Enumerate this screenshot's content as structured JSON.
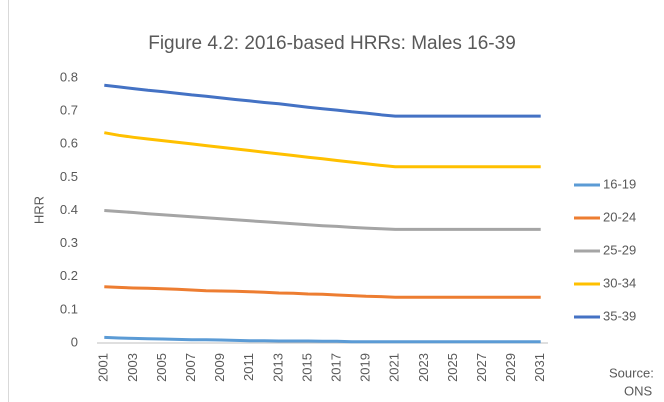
{
  "chart_data": {
    "type": "line",
    "title": "Figure 4.2: 2016-based HRRs: Males 16-39",
    "y_label": "HRR",
    "annotation": [
      "Source:",
      "ONS"
    ],
    "categories": [
      "2001",
      null,
      "2003",
      null,
      "2005",
      null,
      "2007",
      null,
      "2009",
      null,
      "2011",
      null,
      "2013",
      null,
      "2015",
      null,
      "2017",
      null,
      "2019",
      null,
      "2021",
      null,
      "2023",
      null,
      "2025",
      null,
      "2027",
      null,
      "2029",
      null,
      "2031"
    ],
    "series": [
      {
        "name": "16-19",
        "color": "#5b9bd5",
        "values": [
          0.017,
          0.015,
          0.014,
          0.013,
          0.012,
          0.011,
          0.01,
          0.01,
          0.009,
          0.008,
          0.007,
          0.007,
          0.006,
          0.006,
          0.006,
          0.005,
          0.005,
          0.004,
          0.004,
          0.004,
          0.004,
          0.004,
          0.004,
          0.004,
          0.004,
          0.004,
          0.004,
          0.004,
          0.004,
          0.004,
          0.004
        ]
      },
      {
        "name": "20-24",
        "color": "#ed7d31",
        "values": [
          0.17,
          0.168,
          0.166,
          0.165,
          0.164,
          0.162,
          0.16,
          0.158,
          0.157,
          0.156,
          0.155,
          0.153,
          0.151,
          0.15,
          0.148,
          0.147,
          0.145,
          0.143,
          0.141,
          0.14,
          0.138,
          0.138,
          0.138,
          0.138,
          0.138,
          0.138,
          0.138,
          0.138,
          0.138,
          0.138,
          0.138
        ]
      },
      {
        "name": "25-29",
        "color": "#a5a5a5",
        "values": [
          0.4,
          0.397,
          0.394,
          0.39,
          0.387,
          0.384,
          0.381,
          0.378,
          0.375,
          0.372,
          0.369,
          0.366,
          0.363,
          0.36,
          0.357,
          0.354,
          0.352,
          0.349,
          0.347,
          0.345,
          0.343,
          0.343,
          0.343,
          0.343,
          0.343,
          0.343,
          0.343,
          0.343,
          0.343,
          0.343,
          0.343
        ]
      },
      {
        "name": "30-34",
        "color": "#ffc000",
        "values": [
          0.635,
          0.627,
          0.621,
          0.616,
          0.611,
          0.606,
          0.601,
          0.596,
          0.591,
          0.586,
          0.581,
          0.576,
          0.571,
          0.566,
          0.561,
          0.556,
          0.551,
          0.546,
          0.541,
          0.536,
          0.532,
          0.532,
          0.532,
          0.532,
          0.532,
          0.532,
          0.532,
          0.532,
          0.532,
          0.532,
          0.532
        ]
      },
      {
        "name": "35-39",
        "color": "#4472c4",
        "values": [
          0.778,
          0.773,
          0.768,
          0.763,
          0.759,
          0.754,
          0.749,
          0.745,
          0.74,
          0.735,
          0.731,
          0.726,
          0.722,
          0.717,
          0.712,
          0.707,
          0.703,
          0.698,
          0.694,
          0.689,
          0.685,
          0.685,
          0.685,
          0.685,
          0.685,
          0.685,
          0.685,
          0.685,
          0.685,
          0.685,
          0.685
        ]
      }
    ],
    "ylim": [
      0,
      0.8
    ],
    "yticks": [
      0,
      0.1,
      0.2,
      0.3,
      0.4,
      0.5,
      0.6,
      0.7,
      0.8
    ],
    "grid": false,
    "legend": "right"
  }
}
